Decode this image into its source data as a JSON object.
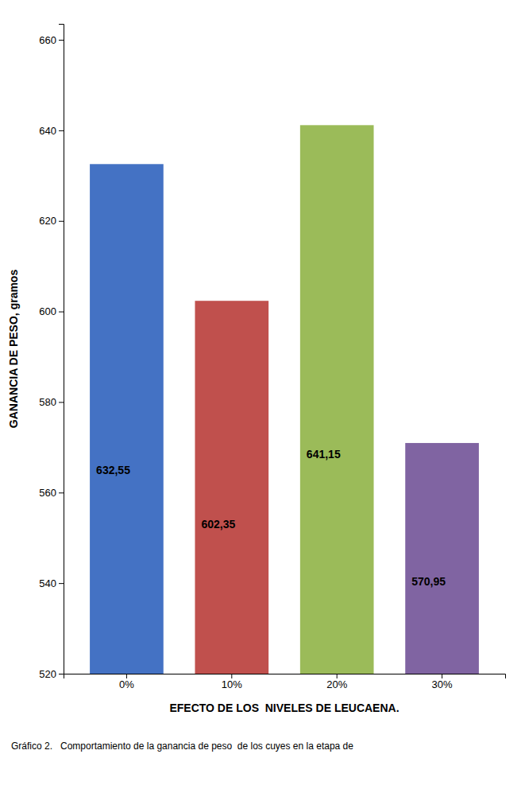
{
  "chart_data": {
    "type": "bar",
    "categories": [
      "0%",
      "10%",
      "20%",
      "30%"
    ],
    "values": [
      632.55,
      602.35,
      641.15,
      570.95
    ],
    "value_labels": [
      "632,55",
      "602,35",
      "641,15",
      "570,95"
    ],
    "data_labels": true,
    "colors": [
      "#4472C4",
      "#C0504D",
      "#9BBB59",
      "#8064A2"
    ],
    "xlabel": "EFECTO DE LOS  NIVELES DE LEUCAENA.",
    "ylabel": "GANANCIA DE PESO, gramos",
    "annotations": [
      "Gráfico 2.   Comportamiento de la ganancia de peso  de los cuyes en la etapa de"
    ],
    "ylim": [
      520,
      663.52
    ],
    "yticks": [
      520,
      540,
      560,
      580,
      600,
      620,
      640,
      660
    ],
    "grid": false
  }
}
